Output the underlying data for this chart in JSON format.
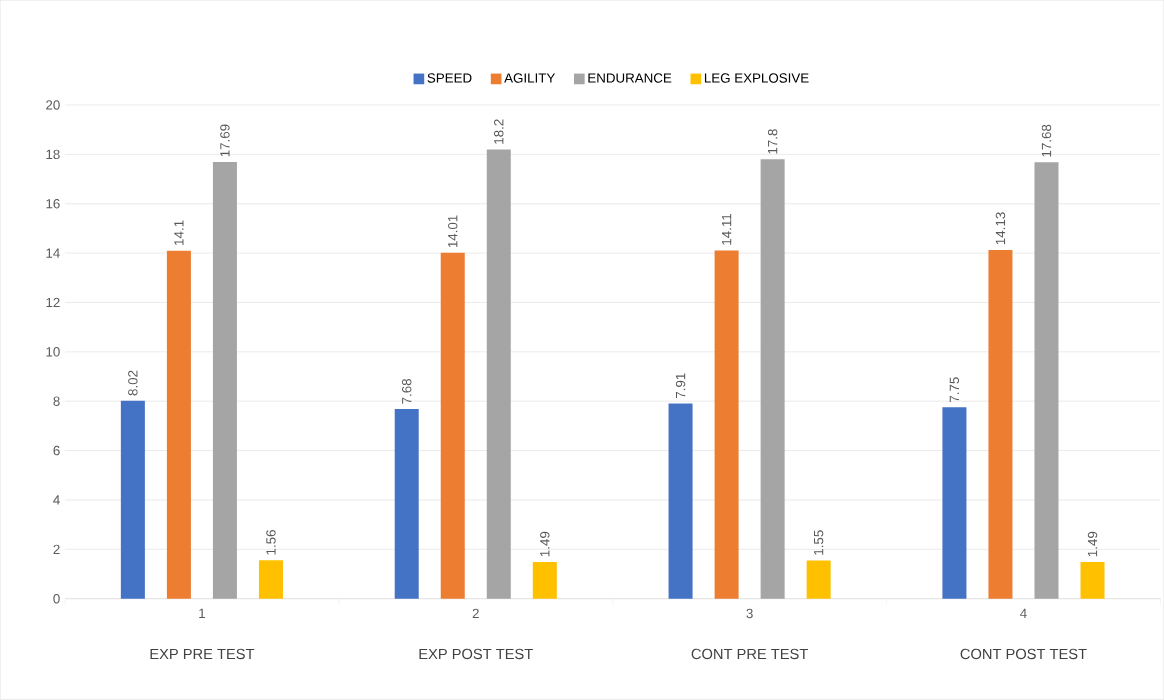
{
  "chart_data": {
    "type": "bar",
    "categories": [
      "1",
      "2",
      "3",
      "4"
    ],
    "series": [
      {
        "name": "SPEED",
        "color": "#4472c4",
        "values": [
          8.02,
          7.68,
          7.91,
          7.75
        ],
        "value_labels": [
          "8.02",
          "7.68",
          "7.91",
          "7.75"
        ]
      },
      {
        "name": "AGILITY",
        "color": "#ed7d31",
        "values": [
          14.1,
          14.01,
          14.11,
          14.13
        ],
        "value_labels": [
          "14.1",
          "14.01",
          "14.11",
          "14.13"
        ]
      },
      {
        "name": "ENDURANCE",
        "color": "#a5a5a5",
        "values": [
          17.69,
          18.2,
          17.8,
          17.68
        ],
        "value_labels": [
          "17.69",
          "18.2",
          "17.8",
          "17.68"
        ]
      },
      {
        "name": "LEG EXPLOSIVE",
        "color": "#ffc000",
        "values": [
          1.56,
          1.49,
          1.55,
          1.49
        ],
        "value_labels": [
          "1.56",
          "1.49",
          "1.55",
          "1.49"
        ]
      }
    ],
    "annotations": [
      "EXP PRE TEST",
      "EXP POST TEST",
      "CONT PRE TEST",
      "CONT POST TEST"
    ],
    "ylim": [
      0,
      20
    ],
    "yticks": [
      0,
      2,
      4,
      6,
      8,
      10,
      12,
      14,
      16,
      18,
      20
    ],
    "grid": "y",
    "legend": "top"
  }
}
